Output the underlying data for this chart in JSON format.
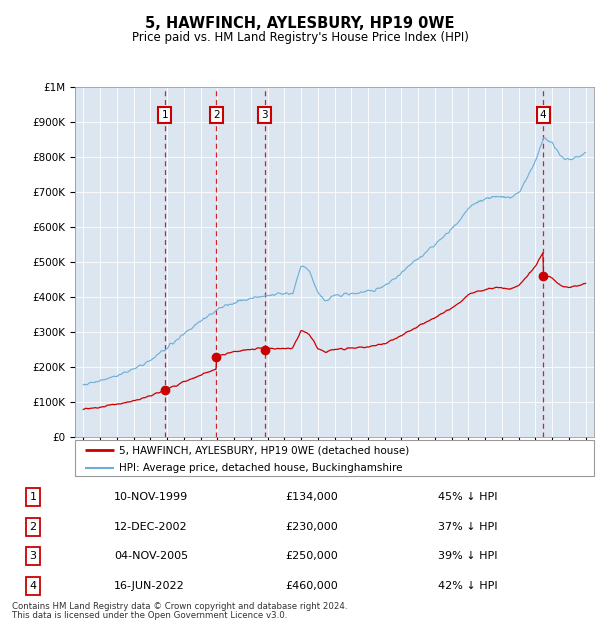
{
  "title": "5, HAWFINCH, AYLESBURY, HP19 0WE",
  "subtitle": "Price paid vs. HM Land Registry's House Price Index (HPI)",
  "sales": [
    {
      "date": 1999.87,
      "price": 134000,
      "label": "1"
    },
    {
      "date": 2002.95,
      "price": 230000,
      "label": "2"
    },
    {
      "date": 2005.84,
      "price": 250000,
      "label": "3"
    },
    {
      "date": 2022.46,
      "price": 460000,
      "label": "4"
    }
  ],
  "sale_dates_text": [
    "10-NOV-1999",
    "12-DEC-2002",
    "04-NOV-2005",
    "16-JUN-2022"
  ],
  "sale_prices_text": [
    "£134,000",
    "£230,000",
    "£250,000",
    "£460,000"
  ],
  "sale_below_text": [
    "45% ↓ HPI",
    "37% ↓ HPI",
    "39% ↓ HPI",
    "42% ↓ HPI"
  ],
  "legend_line1": "5, HAWFINCH, AYLESBURY, HP19 0WE (detached house)",
  "legend_line2": "HPI: Average price, detached house, Buckinghamshire",
  "footer1": "Contains HM Land Registry data © Crown copyright and database right 2024.",
  "footer2": "This data is licensed under the Open Government Licence v3.0.",
  "hpi_color": "#6baed6",
  "sale_color": "#cc0000",
  "bg_color": "#dce6f1",
  "ylim": [
    0,
    1000000
  ],
  "xlim_start": 1994.5,
  "xlim_end": 2025.5,
  "hpi_knots": [
    [
      1995.0,
      150000
    ],
    [
      1996.0,
      160000
    ],
    [
      1997.0,
      175000
    ],
    [
      1998.0,
      195000
    ],
    [
      1999.0,
      220000
    ],
    [
      2000.0,
      255000
    ],
    [
      2001.0,
      295000
    ],
    [
      2002.0,
      330000
    ],
    [
      2003.0,
      365000
    ],
    [
      2004.0,
      385000
    ],
    [
      2005.0,
      395000
    ],
    [
      2006.0,
      405000
    ],
    [
      2007.5,
      410000
    ],
    [
      2008.0,
      490000
    ],
    [
      2008.5,
      475000
    ],
    [
      2009.0,
      410000
    ],
    [
      2009.5,
      390000
    ],
    [
      2010.0,
      405000
    ],
    [
      2011.0,
      410000
    ],
    [
      2012.0,
      415000
    ],
    [
      2013.0,
      430000
    ],
    [
      2014.0,
      470000
    ],
    [
      2015.0,
      510000
    ],
    [
      2016.0,
      550000
    ],
    [
      2017.0,
      595000
    ],
    [
      2017.5,
      620000
    ],
    [
      2018.0,
      655000
    ],
    [
      2018.5,
      670000
    ],
    [
      2019.0,
      680000
    ],
    [
      2020.0,
      690000
    ],
    [
      2020.5,
      680000
    ],
    [
      2021.0,
      700000
    ],
    [
      2021.5,
      740000
    ],
    [
      2022.0,
      790000
    ],
    [
      2022.5,
      855000
    ],
    [
      2023.0,
      840000
    ],
    [
      2023.5,
      800000
    ],
    [
      2024.0,
      790000
    ],
    [
      2024.5,
      800000
    ],
    [
      2025.0,
      810000
    ]
  ]
}
